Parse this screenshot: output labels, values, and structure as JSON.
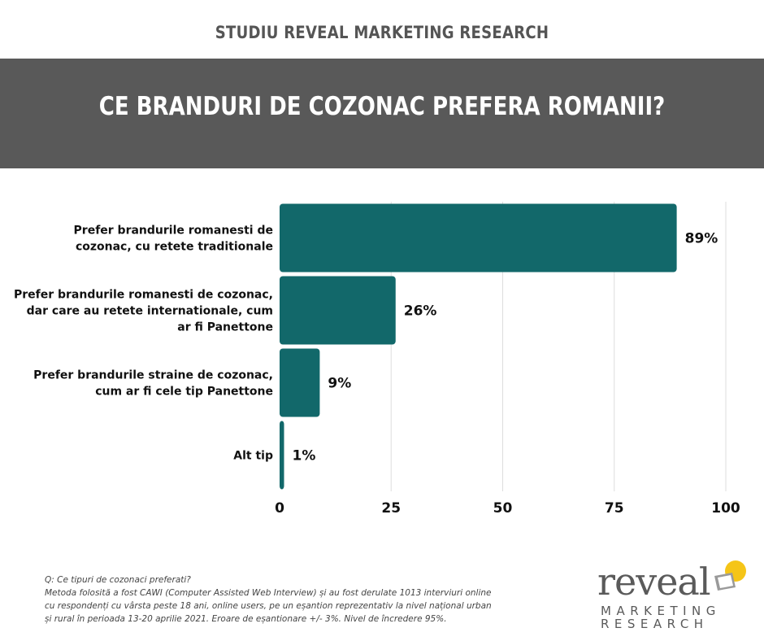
{
  "header": {
    "supertitle": "STUDIU REVEAL MARKETING RESEARCH",
    "title": "CE BRANDURI DE COZONAC PREFERA ROMANII?"
  },
  "colors": {
    "banner": "#595959",
    "bar": "#12686a",
    "accent_yellow": "#f5c518",
    "text": "#111111"
  },
  "chart_data": {
    "type": "bar",
    "orientation": "horizontal",
    "categories": [
      [
        "Prefer brandurile romanesti de",
        "cozonac, cu retete traditionale"
      ],
      [
        "Prefer brandurile romanesti de cozonac,",
        "dar care au retete internationale, cum",
        "ar fi Panettone"
      ],
      [
        "Prefer brandurile straine de cozonac,",
        "cum ar fi cele tip Panettone"
      ],
      [
        "Alt tip"
      ]
    ],
    "values": [
      89,
      26,
      9,
      1
    ],
    "value_labels": [
      "89%",
      "26%",
      "9%",
      "1%"
    ],
    "xlim": [
      0,
      100
    ],
    "xticks": [
      0,
      25,
      50,
      75,
      100
    ],
    "xtick_labels": [
      "0",
      "25",
      "50",
      "75",
      "100"
    ],
    "grid": "vertical",
    "legend": "none"
  },
  "footnote": {
    "lines": [
      "Q: Ce tipuri de cozonaci preferati?",
      "Metoda folosită a fost CAWI (Computer Assisted Web Interview) și au fost derulate 1013 interviuri online",
      "cu respondenți cu vârsta peste 18 ani, online users, pe un eșantion reprezentativ la nivel național urban",
      "și rural în perioada 13-20 aprilie 2021. Eroare de eșantionare +/- 3%. Nivel de încredere 95%."
    ]
  },
  "logo": {
    "word": "reveal",
    "line1": "MARKETING",
    "line2": "RESEARCH"
  }
}
